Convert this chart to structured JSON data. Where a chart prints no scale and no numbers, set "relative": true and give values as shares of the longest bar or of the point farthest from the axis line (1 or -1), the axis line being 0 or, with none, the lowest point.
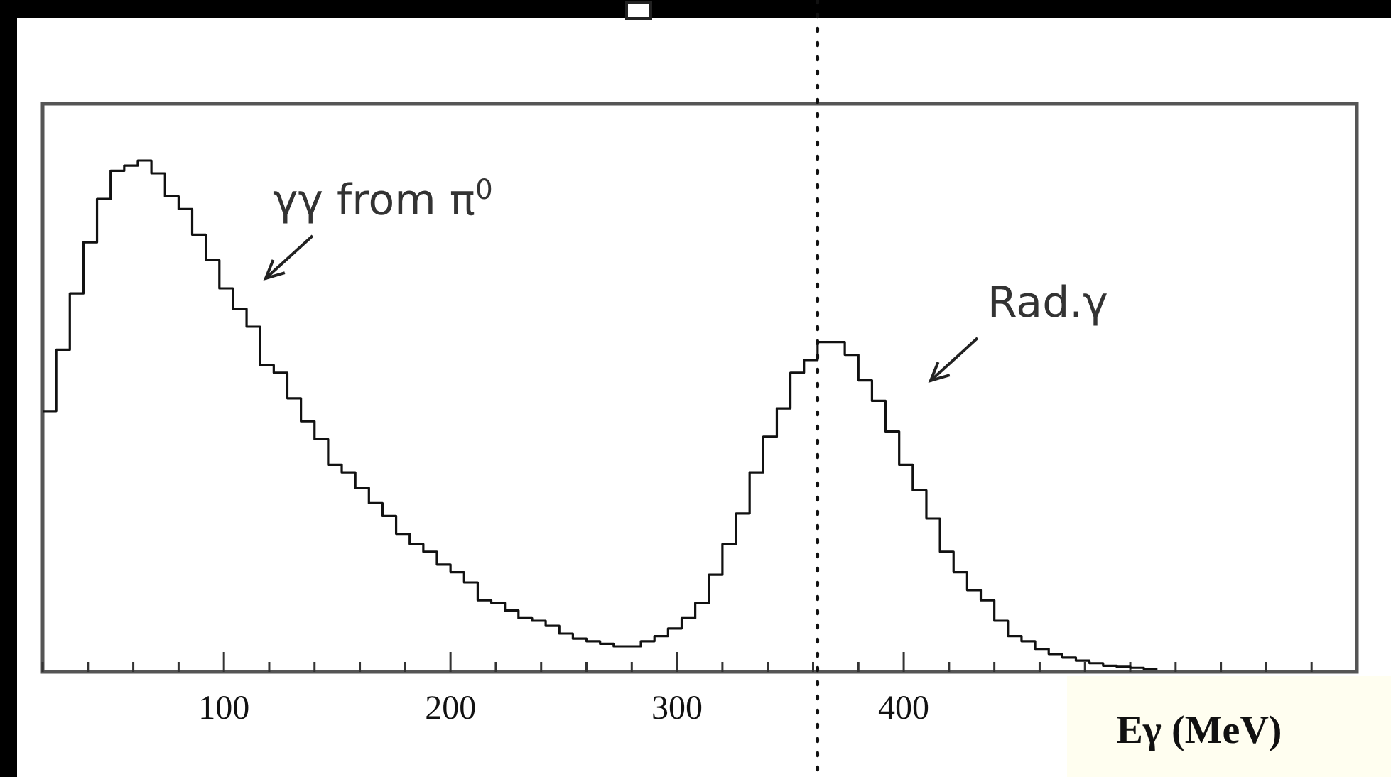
{
  "chart_data": {
    "type": "step",
    "relative": true,
    "color": "#111111",
    "xlabel": "Eγ (MeV)",
    "x": [
      20,
      26,
      32,
      38,
      44,
      50,
      56,
      62,
      68,
      74,
      80,
      86,
      92,
      98,
      104,
      110,
      116,
      122,
      128,
      134,
      140,
      146,
      152,
      158,
      164,
      170,
      176,
      182,
      188,
      194,
      200,
      206,
      212,
      218,
      224,
      230,
      236,
      242,
      248,
      254,
      260,
      266,
      272,
      278,
      284,
      290,
      296,
      302,
      308,
      314,
      320,
      326,
      332,
      338,
      344,
      350,
      356,
      362,
      368,
      374,
      380,
      386,
      392,
      398,
      404,
      410,
      416,
      422,
      428,
      434,
      440,
      446,
      452,
      458,
      464,
      470,
      476,
      482,
      488,
      494,
      500,
      506,
      512
    ],
    "values": [
      0.51,
      0.63,
      0.74,
      0.84,
      0.925,
      0.98,
      0.99,
      1.0,
      0.975,
      0.93,
      0.905,
      0.855,
      0.805,
      0.75,
      0.71,
      0.675,
      0.6,
      0.585,
      0.535,
      0.49,
      0.455,
      0.405,
      0.39,
      0.36,
      0.33,
      0.305,
      0.27,
      0.25,
      0.235,
      0.21,
      0.195,
      0.175,
      0.14,
      0.135,
      0.12,
      0.105,
      0.1,
      0.09,
      0.075,
      0.065,
      0.06,
      0.055,
      0.05,
      0.05,
      0.06,
      0.07,
      0.085,
      0.105,
      0.135,
      0.19,
      0.25,
      0.31,
      0.39,
      0.46,
      0.515,
      0.585,
      0.61,
      0.645,
      0.645,
      0.62,
      0.57,
      0.53,
      0.47,
      0.405,
      0.355,
      0.3,
      0.235,
      0.195,
      0.16,
      0.14,
      0.1,
      0.07,
      0.06,
      0.045,
      0.035,
      0.028,
      0.022,
      0.017,
      0.012,
      0.01,
      0.008,
      0.005,
      0.005
    ],
    "xlim": [
      20,
      600
    ],
    "xticks": [
      {
        "value": 20,
        "label": null
      },
      {
        "value": 40,
        "label": null
      },
      {
        "value": 60,
        "label": null
      },
      {
        "value": 80,
        "label": null
      },
      100,
      {
        "value": 120,
        "label": null
      },
      {
        "value": 140,
        "label": null
      },
      {
        "value": 160,
        "label": null
      },
      {
        "value": 180,
        "label": null
      },
      200,
      {
        "value": 220,
        "label": null
      },
      {
        "value": 240,
        "label": null
      },
      {
        "value": 260,
        "label": null
      },
      {
        "value": 280,
        "label": null
      },
      300,
      {
        "value": 320,
        "label": null
      },
      {
        "value": 340,
        "label": null
      },
      {
        "value": 360,
        "label": null
      },
      {
        "value": 380,
        "label": null
      },
      400,
      {
        "value": 420,
        "label": null
      },
      {
        "value": 440,
        "label": null
      },
      {
        "value": 460,
        "label": null
      },
      {
        "value": 480,
        "label": null
      },
      {
        "value": 500,
        "label": null
      },
      {
        "value": 520,
        "label": null
      },
      {
        "value": 540,
        "label": null
      },
      {
        "value": 560,
        "label": null
      },
      {
        "value": 580,
        "label": null
      }
    ],
    "ref_lines": [
      {
        "axis": "x",
        "value": 362,
        "line_style": "dotted",
        "color": "#111111"
      }
    ],
    "annotations": [
      "γγ from π$^{0}$",
      "Rad.γ"
    ],
    "grid": false
  }
}
